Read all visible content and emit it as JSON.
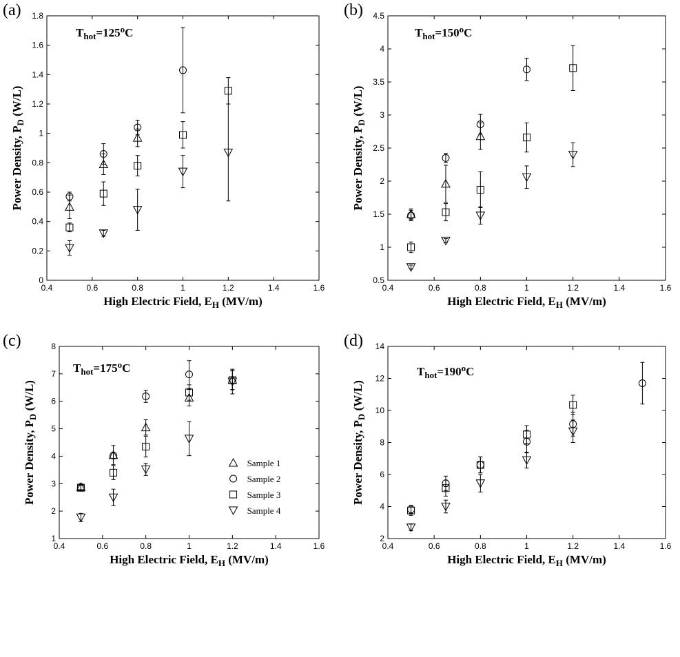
{
  "chart_data": [
    {
      "type": "scatter",
      "panel_label": "(a)",
      "title_main": "T",
      "title_sub": "hot",
      "title_rest": "=125",
      "title_sup": "o",
      "title_end": "C",
      "xlabel_main": "High Electric Field, E",
      "xlabel_sub": "H",
      "xlabel_end": " (MV/m)",
      "ylabel_main": "Power Density, P",
      "ylabel_sub": "D",
      "ylabel_end": " (W/L)",
      "xlim": [
        0.4,
        1.6
      ],
      "ylim": [
        0,
        1.8
      ],
      "xticks": [
        "0.4",
        "0.6",
        "0.8",
        "1",
        "1.2",
        "1.4",
        "1.6"
      ],
      "yticks": [
        "0",
        "0.2",
        "0.4",
        "0.6",
        "0.8",
        "1",
        "1.2",
        "1.4",
        "1.6",
        "1.8"
      ],
      "series": [
        {
          "name": "Sample 1",
          "marker": "triangle-up",
          "points": [
            {
              "x": 0.5,
              "y": 0.5,
              "err": 0.08
            },
            {
              "x": 0.65,
              "y": 0.79,
              "err": 0.07
            },
            {
              "x": 0.8,
              "y": 0.97,
              "err": 0.06
            }
          ]
        },
        {
          "name": "Sample 2",
          "marker": "circle",
          "points": [
            {
              "x": 0.5,
              "y": 0.57,
              "err": 0.03
            },
            {
              "x": 0.65,
              "y": 0.86,
              "err": 0.07
            },
            {
              "x": 0.8,
              "y": 1.04,
              "err": 0.05
            },
            {
              "x": 1.0,
              "y": 1.43,
              "err": 0.29
            }
          ]
        },
        {
          "name": "Sample 3",
          "marker": "square",
          "points": [
            {
              "x": 0.5,
              "y": 0.36,
              "err": 0.03
            },
            {
              "x": 0.65,
              "y": 0.59,
              "err": 0.08
            },
            {
              "x": 0.8,
              "y": 0.78,
              "err": 0.07
            },
            {
              "x": 1.0,
              "y": 0.99,
              "err": 0.09
            },
            {
              "x": 1.2,
              "y": 1.29,
              "err": 0.09
            }
          ]
        },
        {
          "name": "Sample 4",
          "marker": "triangle-down",
          "points": [
            {
              "x": 0.5,
              "y": 0.22,
              "err": 0.05
            },
            {
              "x": 0.65,
              "y": 0.32,
              "err": 0.02
            },
            {
              "x": 0.8,
              "y": 0.48,
              "err": 0.14
            },
            {
              "x": 1.0,
              "y": 0.74,
              "err": 0.11
            },
            {
              "x": 1.2,
              "y": 0.87,
              "err": 0.33
            }
          ]
        }
      ]
    },
    {
      "type": "scatter",
      "panel_label": "(b)",
      "title_main": "T",
      "title_sub": "hot",
      "title_rest": "=150",
      "title_sup": "o",
      "title_end": "C",
      "xlabel_main": "High Electric Field, E",
      "xlabel_sub": "H",
      "xlabel_end": " (MV/m)",
      "ylabel_main": "Power Density, P",
      "ylabel_sub": "D",
      "ylabel_end": " (W/L)",
      "xlim": [
        0.4,
        1.6
      ],
      "ylim": [
        0.5,
        4.5
      ],
      "xticks": [
        "0.4",
        "0.6",
        "0.8",
        "1",
        "1.2",
        "1.4",
        "1.6"
      ],
      "yticks": [
        "0.5",
        "1",
        "1.5",
        "2",
        "2.5",
        "3",
        "3.5",
        "4",
        "4.5"
      ],
      "series": [
        {
          "name": "Sample 1",
          "marker": "triangle-up",
          "points": [
            {
              "x": 0.5,
              "y": 1.5,
              "err": 0.08
            },
            {
              "x": 0.65,
              "y": 1.96,
              "err": 0.28
            },
            {
              "x": 0.8,
              "y": 2.68,
              "err": 0.2
            }
          ]
        },
        {
          "name": "Sample 2",
          "marker": "circle",
          "points": [
            {
              "x": 0.5,
              "y": 1.48,
              "err": 0.08
            },
            {
              "x": 0.65,
              "y": 2.35,
              "err": 0.07
            },
            {
              "x": 0.8,
              "y": 2.86,
              "err": 0.15
            },
            {
              "x": 1.0,
              "y": 3.69,
              "err": 0.17
            }
          ]
        },
        {
          "name": "Sample 3",
          "marker": "square",
          "points": [
            {
              "x": 0.5,
              "y": 1.0,
              "err": 0.08
            },
            {
              "x": 0.65,
              "y": 1.53,
              "err": 0.13
            },
            {
              "x": 0.8,
              "y": 1.87,
              "err": 0.27
            },
            {
              "x": 1.0,
              "y": 2.66,
              "err": 0.22
            },
            {
              "x": 1.2,
              "y": 3.71,
              "err": 0.34
            }
          ]
        },
        {
          "name": "Sample 4",
          "marker": "triangle-down",
          "points": [
            {
              "x": 0.5,
              "y": 0.7,
              "err": 0.03
            },
            {
              "x": 0.65,
              "y": 1.1,
              "err": 0.03
            },
            {
              "x": 0.8,
              "y": 1.48,
              "err": 0.13
            },
            {
              "x": 1.0,
              "y": 2.06,
              "err": 0.17
            },
            {
              "x": 1.2,
              "y": 2.4,
              "err": 0.18
            }
          ]
        }
      ]
    },
    {
      "type": "scatter",
      "panel_label": "(c)",
      "title_main": "T",
      "title_sub": "hot",
      "title_rest": "=175",
      "title_sup": "o",
      "title_end": "C",
      "xlabel_main": "High Electric Field, E",
      "xlabel_sub": "H",
      "xlabel_end": " (MV/m)",
      "ylabel_main": "Power Density, P",
      "ylabel_sub": "D",
      "ylabel_end": " (W/L)",
      "xlim": [
        0.4,
        1.6
      ],
      "ylim": [
        1,
        8
      ],
      "xticks": [
        "0.4",
        "0.6",
        "0.8",
        "1",
        "1.2",
        "1.4",
        "1.6"
      ],
      "yticks": [
        "1",
        "2",
        "3",
        "4",
        "5",
        "6",
        "7",
        "8"
      ],
      "legend": {
        "position": "lower-right",
        "entries": [
          "Sample 1",
          "Sample 2",
          "Sample 3",
          "Sample 4"
        ]
      },
      "series": [
        {
          "name": "Sample 1",
          "marker": "triangle-up",
          "points": [
            {
              "x": 0.5,
              "y": 2.88,
              "err": 0.12
            },
            {
              "x": 0.65,
              "y": 4.04,
              "err": 0.35
            },
            {
              "x": 0.8,
              "y": 5.05,
              "err": 0.28
            },
            {
              "x": 1.0,
              "y": 6.13,
              "err": 0.3
            },
            {
              "x": 1.2,
              "y": 6.78,
              "err": 0.35
            }
          ]
        },
        {
          "name": "Sample 2",
          "marker": "circle",
          "points": [
            {
              "x": 0.5,
              "y": 2.86,
              "err": 0.08
            },
            {
              "x": 0.65,
              "y": 4.02,
              "err": 0.1
            },
            {
              "x": 0.8,
              "y": 6.18,
              "err": 0.22
            },
            {
              "x": 1.0,
              "y": 6.98,
              "err": 0.5
            }
          ]
        },
        {
          "name": "Sample 3",
          "marker": "square",
          "points": [
            {
              "x": 0.5,
              "y": 2.85,
              "err": 0.1
            },
            {
              "x": 0.65,
              "y": 3.4,
              "err": 0.25
            },
            {
              "x": 0.8,
              "y": 4.35,
              "err": 0.38
            },
            {
              "x": 1.0,
              "y": 6.32,
              "err": 0.28
            },
            {
              "x": 1.2,
              "y": 6.77,
              "err": 0.35
            }
          ]
        },
        {
          "name": "Sample 4",
          "marker": "triangle-down",
          "points": [
            {
              "x": 0.5,
              "y": 1.77,
              "err": 0.15
            },
            {
              "x": 0.65,
              "y": 2.5,
              "err": 0.3
            },
            {
              "x": 0.8,
              "y": 3.52,
              "err": 0.22
            },
            {
              "x": 1.0,
              "y": 4.64,
              "err": 0.62
            },
            {
              "x": 1.2,
              "y": 6.72,
              "err": 0.45
            }
          ]
        }
      ]
    },
    {
      "type": "scatter",
      "panel_label": "(d)",
      "title_main": "T",
      "title_sub": "hot",
      "title_rest": "=190",
      "title_sup": "o",
      "title_end": "C",
      "xlabel_main": "High Electric Field, E",
      "xlabel_sub": "H",
      "xlabel_end": " (MV/m)",
      "ylabel_main": "Power Density, P",
      "ylabel_sub": "D",
      "ylabel_end": " (W/L)",
      "xlim": [
        0.4,
        1.6
      ],
      "ylim": [
        2,
        14
      ],
      "xticks": [
        "0.4",
        "0.6",
        "0.8",
        "1",
        "1.2",
        "1.4",
        "1.6"
      ],
      "yticks": [
        "2",
        "4",
        "6",
        "8",
        "10",
        "12",
        "14"
      ],
      "series": [
        {
          "name": "Sample 2",
          "marker": "circle",
          "points": [
            {
              "x": 0.5,
              "y": 3.82,
              "err": 0.25
            },
            {
              "x": 0.65,
              "y": 5.45,
              "err": 0.45
            },
            {
              "x": 0.8,
              "y": 6.6,
              "err": 0.5
            },
            {
              "x": 1.0,
              "y": 8.05,
              "err": 0.7
            },
            {
              "x": 1.2,
              "y": 9.15,
              "err": 0.75
            },
            {
              "x": 1.5,
              "y": 11.7,
              "err": 1.3
            }
          ]
        },
        {
          "name": "Sample 3",
          "marker": "square",
          "points": [
            {
              "x": 0.5,
              "y": 3.75,
              "err": 0.3
            },
            {
              "x": 0.65,
              "y": 5.15,
              "err": 0.5
            },
            {
              "x": 0.8,
              "y": 6.6,
              "err": 0.5
            },
            {
              "x": 1.0,
              "y": 8.5,
              "err": 0.55
            },
            {
              "x": 1.2,
              "y": 10.35,
              "err": 0.6
            }
          ]
        },
        {
          "name": "Sample 4",
          "marker": "triangle-down",
          "points": [
            {
              "x": 0.5,
              "y": 2.7,
              "err": 0.2
            },
            {
              "x": 0.65,
              "y": 4.0,
              "err": 0.4
            },
            {
              "x": 0.8,
              "y": 5.45,
              "err": 0.55
            },
            {
              "x": 1.0,
              "y": 6.9,
              "err": 0.5
            },
            {
              "x": 1.2,
              "y": 8.7,
              "err": 0.7
            }
          ]
        }
      ]
    }
  ]
}
